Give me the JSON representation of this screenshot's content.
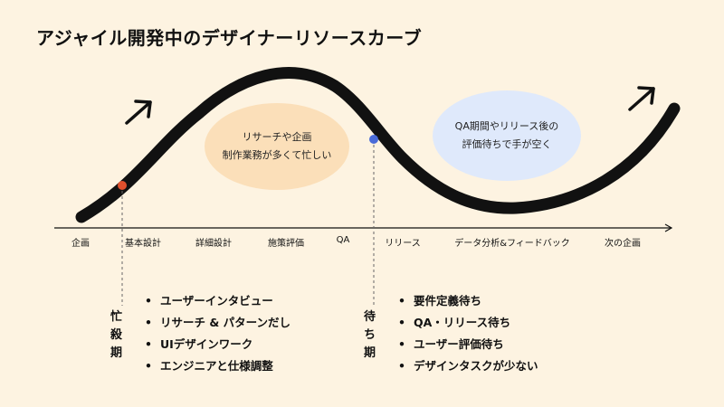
{
  "title": "アジャイル開発中のデザイナーリソースカーブ",
  "bubbles": {
    "busy": {
      "line1": "リサーチや企画",
      "line2": "制作業務が多くて忙しい"
    },
    "wait": {
      "line1": "QA期間やリリース後の",
      "line2": "評価待ちで手が空く"
    }
  },
  "timeline": [
    "企画",
    "基本設計",
    "詳細設計",
    "施策評価",
    "QA",
    "リリース",
    "データ分析&フィードバック",
    "次の企画"
  ],
  "phases": {
    "busy": {
      "label": [
        "忙",
        "殺",
        "期"
      ],
      "marker_color": "#e0502d",
      "points": [
        "ユーザーインタビュー",
        "リサーチ & パターンだし",
        "UIデザインワーク",
        "エンジニアと仕様調整"
      ]
    },
    "wait": {
      "label": [
        "待",
        "ち",
        "期"
      ],
      "marker_color": "#4a6bd8",
      "points": [
        "要件定義待ち",
        "QA・リリース待ち",
        "ユーザー評価待ち",
        "デザインタスクが少ない"
      ]
    }
  },
  "colors": {
    "background": "#fdf3e1",
    "curve": "#111111",
    "bubble_busy": "#fbdfb9",
    "bubble_wait": "#dfe9fb"
  }
}
